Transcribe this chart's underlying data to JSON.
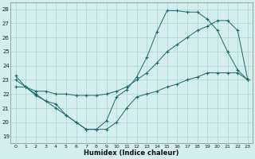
{
  "xlabel": "Humidex (Indice chaleur)",
  "background_color": "#d4eeee",
  "grid_color": "#aad4d4",
  "line_color": "#1a6b6b",
  "xlim": [
    -0.5,
    23.5
  ],
  "ylim": [
    18.5,
    28.5
  ],
  "xticks": [
    0,
    1,
    2,
    3,
    4,
    5,
    6,
    7,
    8,
    9,
    10,
    11,
    12,
    13,
    14,
    15,
    16,
    17,
    18,
    19,
    20,
    21,
    22,
    23
  ],
  "yticks": [
    19,
    20,
    21,
    22,
    23,
    24,
    25,
    26,
    27,
    28
  ],
  "series": [
    {
      "x": [
        0,
        1,
        2,
        3,
        4,
        5,
        6,
        7,
        8,
        9,
        10,
        11,
        12,
        13,
        14,
        15,
        16,
        17,
        18,
        19,
        20,
        21,
        22,
        23
      ],
      "y": [
        23.3,
        22.5,
        21.9,
        21.5,
        21.3,
        20.5,
        20.0,
        19.5,
        19.5,
        20.1,
        21.8,
        22.3,
        23.2,
        24.6,
        26.4,
        27.9,
        27.9,
        27.8,
        27.8,
        27.3,
        26.5,
        25.0,
        23.7,
        23.0
      ]
    },
    {
      "x": [
        0,
        1,
        2,
        3,
        4,
        5,
        6,
        7,
        8,
        9,
        10,
        11,
        12,
        13,
        14,
        15,
        16,
        17,
        18,
        19,
        20,
        21,
        22,
        23
      ],
      "y": [
        23.0,
        22.5,
        22.2,
        22.2,
        22.0,
        22.0,
        21.9,
        21.9,
        21.9,
        22.0,
        22.2,
        22.5,
        23.0,
        23.5,
        24.2,
        25.0,
        25.5,
        26.0,
        26.5,
        26.8,
        27.2,
        27.2,
        26.5,
        23.0
      ]
    },
    {
      "x": [
        0,
        1,
        2,
        3,
        4,
        5,
        6,
        7,
        8,
        9,
        10,
        11,
        12,
        13,
        14,
        15,
        16,
        17,
        18,
        19,
        20,
        21,
        22,
        23
      ],
      "y": [
        22.5,
        22.5,
        22.0,
        21.5,
        21.0,
        20.5,
        20.0,
        19.5,
        19.5,
        19.5,
        20.0,
        21.0,
        21.8,
        22.0,
        22.2,
        22.5,
        22.7,
        23.0,
        23.2,
        23.5,
        23.5,
        23.5,
        23.5,
        23.0
      ]
    }
  ]
}
